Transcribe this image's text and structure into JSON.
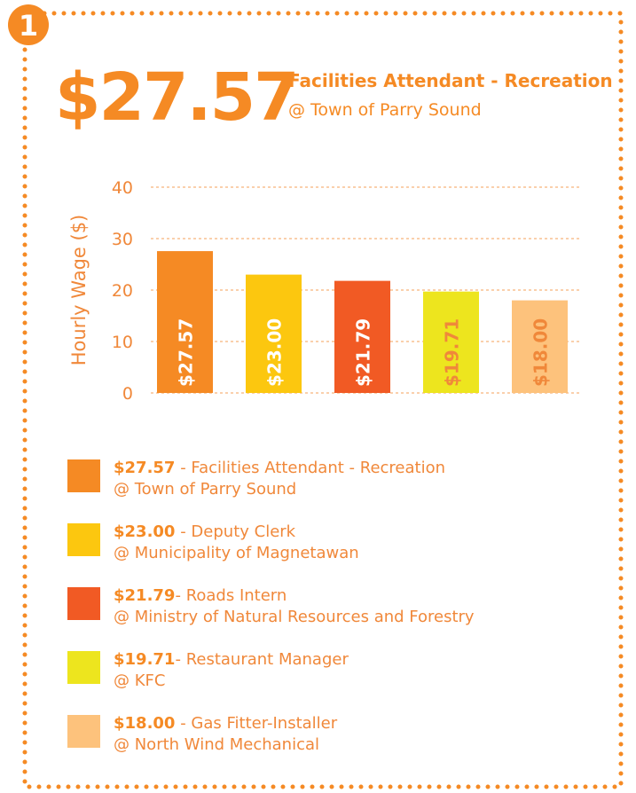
{
  "badge": "1",
  "chart_data": {
    "type": "bar",
    "ylabel": "Hourly Wage ($)",
    "categories": [
      "Facilities Attendant - Recreation",
      "Deputy Clerk",
      "Roads Intern",
      "Restaurant Manager",
      "Gas Fitter-Installer"
    ],
    "employers": [
      "@ Town of Parry Sound",
      "@ Municipality of Magnetawan",
      "@ Ministry of Natural Resources and Forestry",
      "@ KFC",
      "@ North Wind Mechanical"
    ],
    "separators": [
      " - ",
      " - ",
      "- ",
      "- ",
      " - "
    ],
    "values": [
      27.57,
      23.0,
      21.79,
      19.71,
      18.0
    ],
    "value_labels": [
      "$27.57",
      "$23.00",
      "$21.79",
      "$19.71",
      "$18.00"
    ],
    "colors": [
      "#f58a24",
      "#fcc70f",
      "#f15a24",
      "#ede51e",
      "#fdc27c"
    ],
    "value_label_colors": [
      "#ffffff",
      "#ffffff",
      "#ffffff",
      "#f0883a",
      "#f0883a"
    ],
    "ylim": [
      0,
      40
    ],
    "yticks": [
      0,
      10,
      20,
      30,
      40
    ],
    "grid": true
  }
}
